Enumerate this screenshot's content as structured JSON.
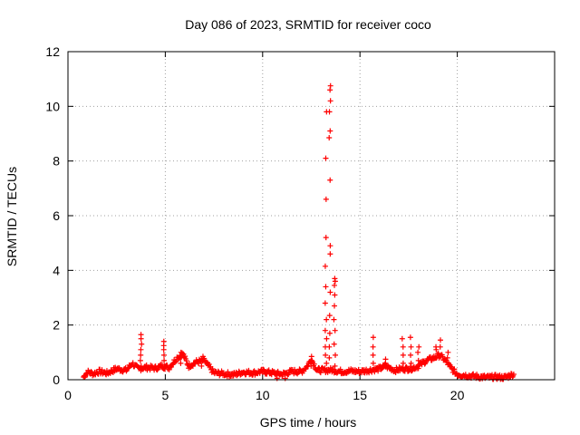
{
  "chart_data": {
    "type": "scatter",
    "title": "Day 086 of 2023, SRMTID for receiver coco",
    "xlabel": "GPS time / hours",
    "ylabel": "SRMTID / TECUs",
    "xlim": [
      0,
      25
    ],
    "ylim": [
      0,
      12
    ],
    "xticks": [
      0,
      5,
      10,
      15,
      20
    ],
    "yticks": [
      0,
      2,
      4,
      6,
      8,
      10,
      12
    ],
    "grid": true,
    "marker": "plus",
    "color": "#ff0000",
    "baseline": [
      [
        0.8,
        0.1
      ],
      [
        1.0,
        0.28
      ],
      [
        1.3,
        0.22
      ],
      [
        1.6,
        0.3
      ],
      [
        2.0,
        0.24
      ],
      [
        2.5,
        0.4
      ],
      [
        3.0,
        0.35
      ],
      [
        3.3,
        0.6
      ],
      [
        3.6,
        0.4
      ],
      [
        4.0,
        0.45
      ],
      [
        4.5,
        0.42
      ],
      [
        4.8,
        0.5
      ],
      [
        5.2,
        0.45
      ],
      [
        5.6,
        0.8
      ],
      [
        5.9,
        0.95
      ],
      [
        6.2,
        0.5
      ],
      [
        6.6,
        0.65
      ],
      [
        7.0,
        0.7
      ],
      [
        7.5,
        0.25
      ],
      [
        8.0,
        0.22
      ],
      [
        8.5,
        0.18
      ],
      [
        9.0,
        0.28
      ],
      [
        9.5,
        0.25
      ],
      [
        10.0,
        0.3
      ],
      [
        10.5,
        0.25
      ],
      [
        11.0,
        0.2
      ],
      [
        11.5,
        0.3
      ],
      [
        12.0,
        0.3
      ],
      [
        12.3,
        0.5
      ],
      [
        12.5,
        0.75
      ],
      [
        12.8,
        0.35
      ],
      [
        13.2,
        0.35
      ],
      [
        13.6,
        0.35
      ],
      [
        14.0,
        0.3
      ],
      [
        14.5,
        0.32
      ],
      [
        15.0,
        0.3
      ],
      [
        15.5,
        0.35
      ],
      [
        16.0,
        0.4
      ],
      [
        16.3,
        0.5
      ],
      [
        16.8,
        0.35
      ],
      [
        17.2,
        0.4
      ],
      [
        17.6,
        0.4
      ],
      [
        18.0,
        0.5
      ],
      [
        18.4,
        0.7
      ],
      [
        18.8,
        0.8
      ],
      [
        19.1,
        0.9
      ],
      [
        19.4,
        0.7
      ],
      [
        19.7,
        0.4
      ],
      [
        20.0,
        0.2
      ],
      [
        20.5,
        0.15
      ],
      [
        21.0,
        0.12
      ],
      [
        21.5,
        0.08
      ],
      [
        22.0,
        0.1
      ],
      [
        22.4,
        0.08
      ],
      [
        22.7,
        0.15
      ],
      [
        22.9,
        0.2
      ]
    ],
    "spikes": [
      {
        "x": 3.75,
        "values": [
          0.5,
          0.7,
          0.9,
          1.1,
          1.3,
          1.5,
          1.65
        ]
      },
      {
        "x": 4.95,
        "values": [
          0.5,
          0.7,
          0.9,
          1.1,
          1.25,
          1.4
        ]
      },
      {
        "x": 5.8,
        "values": [
          0.6,
          0.8,
          1.0
        ]
      },
      {
        "x": 6.9,
        "values": [
          0.5,
          0.7,
          0.85
        ]
      },
      {
        "x": 12.5,
        "values": [
          0.5,
          0.7,
          0.85
        ]
      },
      {
        "x": 13.25,
        "values": [
          0.6,
          0.9,
          1.2,
          1.5,
          1.8,
          2.2,
          2.8,
          3.4,
          4.15,
          5.2,
          6.6,
          8.1,
          9.8
        ]
      },
      {
        "x": 13.45,
        "values": [
          0.8,
          1.2,
          1.7,
          2.35,
          3.2,
          4.6,
          4.9,
          7.3,
          8.85,
          9.1,
          9.8,
          10.2,
          10.6,
          10.75
        ]
      },
      {
        "x": 13.7,
        "values": [
          0.5,
          0.9,
          1.3,
          1.8,
          2.2,
          2.7,
          3.1,
          3.45,
          3.6,
          3.7
        ]
      },
      {
        "x": 15.7,
        "values": [
          0.6,
          0.9,
          1.2,
          1.55
        ]
      },
      {
        "x": 16.3,
        "values": [
          0.6,
          0.75
        ]
      },
      {
        "x": 17.2,
        "values": [
          0.6,
          0.9,
          1.2,
          1.5
        ]
      },
      {
        "x": 17.6,
        "values": [
          0.6,
          0.9,
          1.2,
          1.55
        ]
      },
      {
        "x": 18.0,
        "values": [
          0.7,
          1.0,
          1.2
        ]
      },
      {
        "x": 18.9,
        "values": [
          0.8,
          1.1,
          1.2
        ]
      },
      {
        "x": 19.1,
        "values": [
          0.9,
          1.2,
          1.45
        ]
      },
      {
        "x": 19.5,
        "values": [
          0.8,
          1.0
        ]
      },
      {
        "x": 10.75,
        "values": [
          0.05
        ]
      },
      {
        "x": 11.15,
        "values": [
          0.05
        ]
      }
    ]
  }
}
